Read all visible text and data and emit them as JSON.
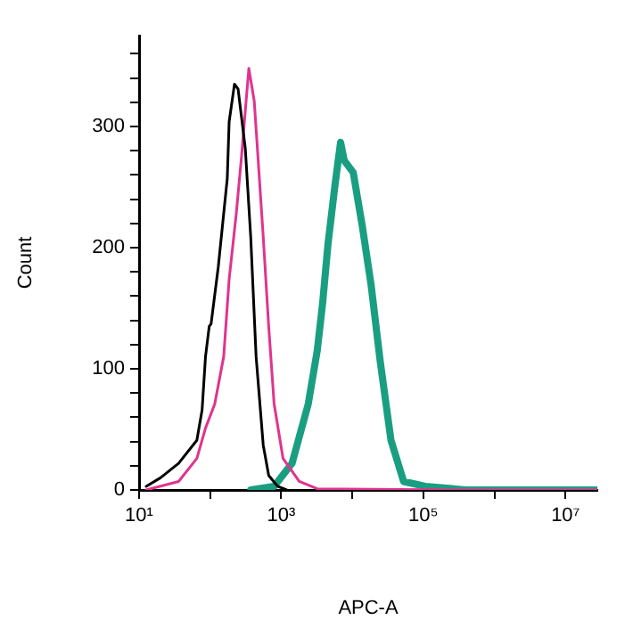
{
  "chart_data": {
    "type": "line",
    "xlabel": "APC-A",
    "ylabel": "Count",
    "log": "x",
    "grid": false,
    "legend": false,
    "marker": "none",
    "line_style": "solid",
    "xlim": [
      10,
      28000000
    ],
    "xticks": [
      {
        "value": 10,
        "label": "10¹"
      },
      {
        "value": 100,
        "label": null
      },
      {
        "value": 1000,
        "label": "10³"
      },
      {
        "value": 10000,
        "label": null
      },
      {
        "value": 100000,
        "label": "10⁵"
      },
      {
        "value": 1000000,
        "label": null
      },
      {
        "value": 10000000,
        "label": "10⁷"
      }
    ],
    "ylim": [
      0,
      375
    ],
    "yticks": [
      0,
      {
        "value": 20,
        "label": null
      },
      {
        "value": 40,
        "label": null
      },
      {
        "value": 60,
        "label": null
      },
      {
        "value": 80,
        "label": null
      },
      100,
      {
        "value": 120,
        "label": null
      },
      {
        "value": 140,
        "label": null
      },
      {
        "value": 160,
        "label": null
      },
      {
        "value": 180,
        "label": null
      },
      200,
      {
        "value": 220,
        "label": null
      },
      {
        "value": 240,
        "label": null
      },
      {
        "value": 260,
        "label": null
      },
      {
        "value": 280,
        "label": null
      },
      300,
      {
        "value": 320,
        "label": null
      },
      {
        "value": 340,
        "label": null
      },
      {
        "value": 360,
        "label": null
      }
    ],
    "series": [
      {
        "color": "#000000",
        "x": [
          12.6,
          20,
          36,
          65,
          77,
          86,
          97,
          103,
          130,
          174,
          185,
          220,
          247,
          312,
          372,
          443,
          558,
          666,
          890,
          1190
        ],
        "values": [
          3,
          10,
          22,
          41,
          66,
          110,
          135,
          137,
          184,
          257,
          304,
          335,
          331,
          282,
          209,
          110,
          37,
          12,
          3,
          0
        ]
      },
      {
        "color": "#e0338f",
        "x": [
          12.6,
          36,
          65,
          86,
          116,
          155,
          185,
          233,
          277,
          350,
          417,
          469,
          558,
          666,
          794,
          1060,
          1790,
          3210,
          400000,
          28000000
        ],
        "values": [
          0,
          7,
          26,
          51,
          71,
          110,
          174,
          228,
          276,
          348,
          321,
          276,
          209,
          135,
          71,
          26,
          7,
          1,
          0,
          0
        ]
      },
      {
        "color": "#1a9e82",
        "x": [
          372,
          794,
          1420,
          2400,
          3210,
          3820,
          4550,
          5740,
          6840,
          7690,
          10300,
          13800,
          18400,
          24700,
          35000,
          52700,
          106000,
          400000,
          28000000
        ],
        "values": [
          0,
          3,
          22,
          71,
          115,
          154,
          203,
          253,
          287,
          272,
          262,
          218,
          169,
          106,
          41,
          7,
          3,
          0,
          0
        ]
      }
    ]
  }
}
